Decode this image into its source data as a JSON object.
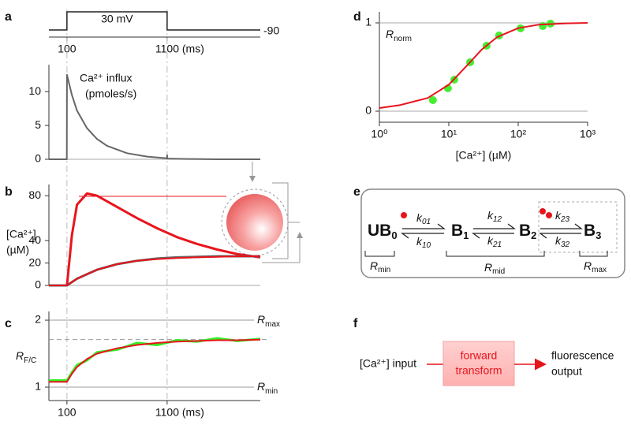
{
  "panel_labels": [
    "a",
    "b",
    "c",
    "d",
    "e",
    "f"
  ],
  "chart_data": [
    {
      "type": "line",
      "annotation": [
        "Ca²⁺ influx",
        "(pmoles/s)"
      ],
      "step": {
        "start": 100,
        "end": 1100,
        "label": "30 mV",
        "holding": "-90"
      },
      "xlim": [
        -80,
        2030
      ],
      "xticks": [
        100,
        {
          "value": 1100,
          "label": "1100 (ms)"
        }
      ],
      "ylim": [
        0,
        14
      ],
      "yticks": [
        0,
        5,
        10
      ],
      "x": [
        -80,
        99,
        100,
        150,
        200,
        300,
        400,
        500,
        700,
        900,
        1099,
        1100,
        1101,
        1300,
        1600,
        2030
      ],
      "series": [
        {
          "color": "#666666",
          "values": [
            0,
            0,
            12.5,
            9.5,
            7.2,
            4.6,
            3.0,
            2.0,
            0.9,
            0.4,
            0.15,
            0.6,
            0.1,
            0.05,
            0,
            0
          ]
        }
      ]
    },
    {
      "type": "line",
      "ylabel": [
        "[Ca²⁺]",
        "(µM)"
      ],
      "xlim": [
        -80,
        2030
      ],
      "ylim": [
        0,
        90
      ],
      "yticks": [
        0,
        20,
        40,
        80
      ],
      "x": [
        -80,
        100,
        150,
        200,
        300,
        400,
        600,
        800,
        1000,
        1200,
        1400,
        1600,
        1800,
        2030
      ],
      "series": [
        {
          "color": "#e8141c",
          "values": [
            0,
            0,
            45,
            72,
            82,
            80,
            70,
            60,
            51,
            43,
            37,
            32,
            28,
            25
          ]
        },
        {
          "color": "#666666",
          "values": [
            0,
            0,
            3,
            6,
            10,
            14,
            19,
            22,
            24,
            25,
            25.5,
            26,
            26,
            26
          ]
        },
        {
          "color": "#e8141c",
          "values": [
            0,
            0,
            3,
            6,
            10,
            14,
            19,
            22,
            23.5,
            24.5,
            25,
            25.5,
            26,
            26
          ]
        }
      ]
    },
    {
      "type": "line",
      "ylabel": {
        "text": "R",
        "sub": "F/C"
      },
      "xlim": [
        -80,
        2030
      ],
      "xticks": [
        100,
        {
          "value": 1100,
          "label": "1100 (ms)"
        }
      ],
      "ylim": [
        0.8,
        2.13
      ],
      "yticks": [
        1,
        2
      ],
      "ref_lines": [
        {
          "value": 2,
          "text": "R",
          "sub": "max"
        },
        {
          "value": 1,
          "text": "R",
          "sub": "min"
        }
      ],
      "dashed_level": 1.71,
      "x": [
        -80,
        100,
        150,
        200,
        300,
        400,
        600,
        800,
        1000,
        1200,
        1400,
        1600,
        1800,
        2030
      ],
      "series": [
        {
          "color": "#33ee22",
          "values": [
            1.1,
            1.1,
            1.22,
            1.33,
            1.4,
            1.52,
            1.56,
            1.66,
            1.63,
            1.7,
            1.68,
            1.73,
            1.69,
            1.72
          ]
        },
        {
          "color": "#e8141c",
          "values": [
            1.08,
            1.08,
            1.2,
            1.3,
            1.42,
            1.5,
            1.58,
            1.63,
            1.66,
            1.68,
            1.69,
            1.7,
            1.7,
            1.71
          ]
        }
      ]
    },
    {
      "type": "scatter",
      "annotation": {
        "text": "R",
        "sub": "norm"
      },
      "xlabel": "[Ca²⁺] (µM)",
      "log_x": true,
      "xlim": [
        1,
        1000
      ],
      "xticks": [
        {
          "value": 1,
          "label": "10⁰"
        },
        {
          "value": 10,
          "label": "10¹"
        },
        {
          "value": 100,
          "label": "10²"
        },
        {
          "value": 1000,
          "label": "10³"
        }
      ],
      "ylim": [
        -0.125,
        1.125
      ],
      "yticks": [
        0,
        1
      ],
      "grid": true,
      "series": [
        {
          "kind": "points",
          "color": "#44ee33",
          "x": [
            5.9,
            9.7,
            12,
            20.3,
            35,
            53,
            108,
            226,
            292
          ],
          "values": [
            0.125,
            0.259,
            0.357,
            0.554,
            0.741,
            0.857,
            0.938,
            0.964,
            0.991
          ]
        },
        {
          "kind": "line",
          "color": "#e8141c",
          "x": [
            1,
            2,
            5,
            10,
            20,
            30,
            50,
            100,
            200,
            500,
            1000
          ],
          "values": [
            0.036,
            0.07,
            0.15,
            0.3,
            0.55,
            0.7,
            0.84,
            0.94,
            0.98,
            0.995,
            1.0
          ]
        }
      ]
    }
  ],
  "scheme": {
    "states": [
      {
        "text": "UB",
        "sub": "0"
      },
      {
        "text": "B",
        "sub": "1"
      },
      {
        "text": "B",
        "sub": "2"
      },
      {
        "text": "B",
        "sub": "3"
      }
    ],
    "rates": [
      {
        "text": "k",
        "sub": "01"
      },
      {
        "text": "k",
        "sub": "10"
      },
      {
        "text": "k",
        "sub": "12"
      },
      {
        "text": "k",
        "sub": "21"
      },
      {
        "text": "k",
        "sub": "23"
      },
      {
        "text": "k",
        "sub": "32"
      }
    ],
    "groups": [
      {
        "text": "R",
        "sub": "min"
      },
      {
        "text": "R",
        "sub": "mid"
      },
      {
        "text": "R",
        "sub": "max"
      }
    ]
  },
  "flow": {
    "input": "[Ca²⁺] input",
    "transform": [
      "forward",
      "transform"
    ],
    "output": [
      "fluorescence",
      "output"
    ]
  }
}
